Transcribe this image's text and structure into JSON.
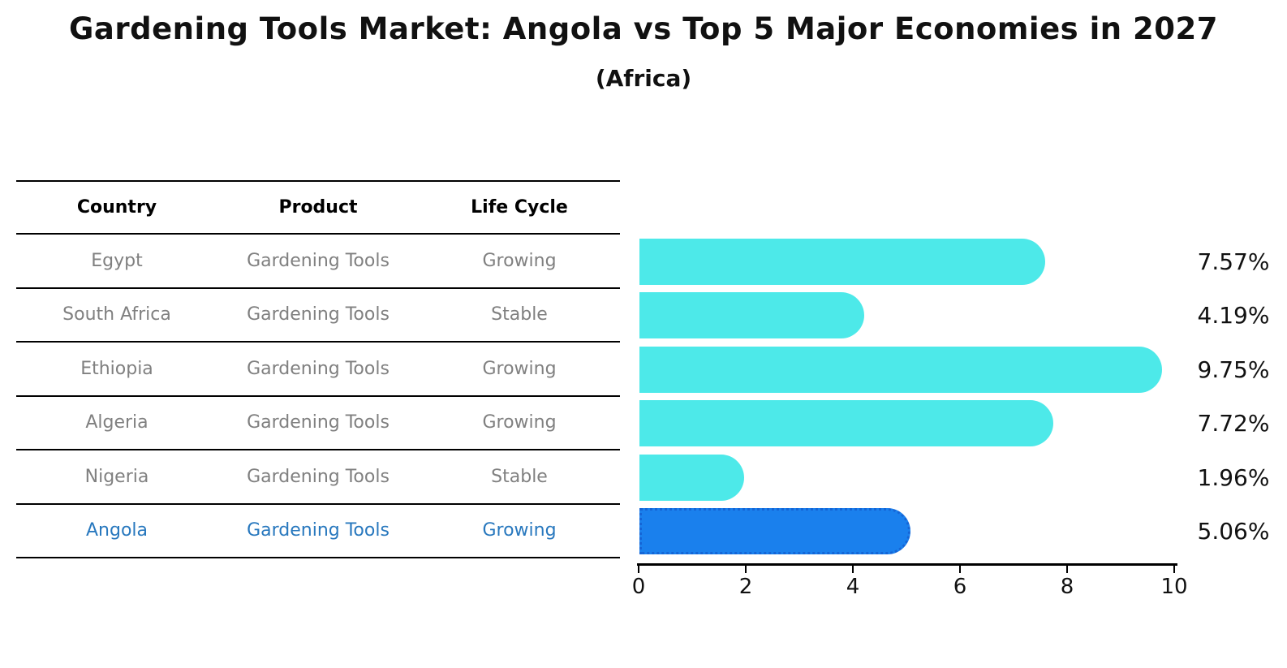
{
  "title": "Gardening Tools Market: Angola vs Top 5 Major Economies in 2027",
  "subtitle": "(Africa)",
  "table": {
    "headers": [
      "Country",
      "Product",
      "Life Cycle"
    ],
    "highlight_text_color": "#2878BE",
    "rows": [
      {
        "country": "Egypt",
        "product": "Gardening Tools",
        "life_cycle": "Growing",
        "highlight": false
      },
      {
        "country": "South Africa",
        "product": "Gardening Tools",
        "life_cycle": "Stable",
        "highlight": false
      },
      {
        "country": "Ethiopia",
        "product": "Gardening Tools",
        "life_cycle": "Growing",
        "highlight": false
      },
      {
        "country": "Algeria",
        "product": "Gardening Tools",
        "life_cycle": "Growing",
        "highlight": false
      },
      {
        "country": "Nigeria",
        "product": "Gardening Tools",
        "life_cycle": "Stable",
        "highlight": false
      },
      {
        "country": "Angola",
        "product": "Gardening Tools",
        "life_cycle": "Growing",
        "highlight": true
      }
    ]
  },
  "chart_data": {
    "type": "bar",
    "orientation": "horizontal",
    "title": "Gardening Tools Market: Angola vs Top 5 Major Economies in 2027",
    "subtitle": "(Africa)",
    "categories": [
      "Egypt",
      "South Africa",
      "Ethiopia",
      "Algeria",
      "Nigeria",
      "Angola"
    ],
    "values": [
      7.57,
      4.19,
      9.75,
      7.72,
      1.96,
      5.06
    ],
    "value_labels": [
      "7.57%",
      "4.19%",
      "9.75%",
      "7.72%",
      "1.96%",
      "5.06%"
    ],
    "x_ticks": [
      "0",
      "2",
      "4",
      "6",
      "8",
      "10"
    ],
    "xlim": [
      0,
      10
    ],
    "grid": false,
    "legend": "none",
    "bar_color": "#4DE9E9",
    "highlight_index": 5,
    "highlight_bar_color": "#1A80ED",
    "highlight_border_color": "#1565D6"
  }
}
